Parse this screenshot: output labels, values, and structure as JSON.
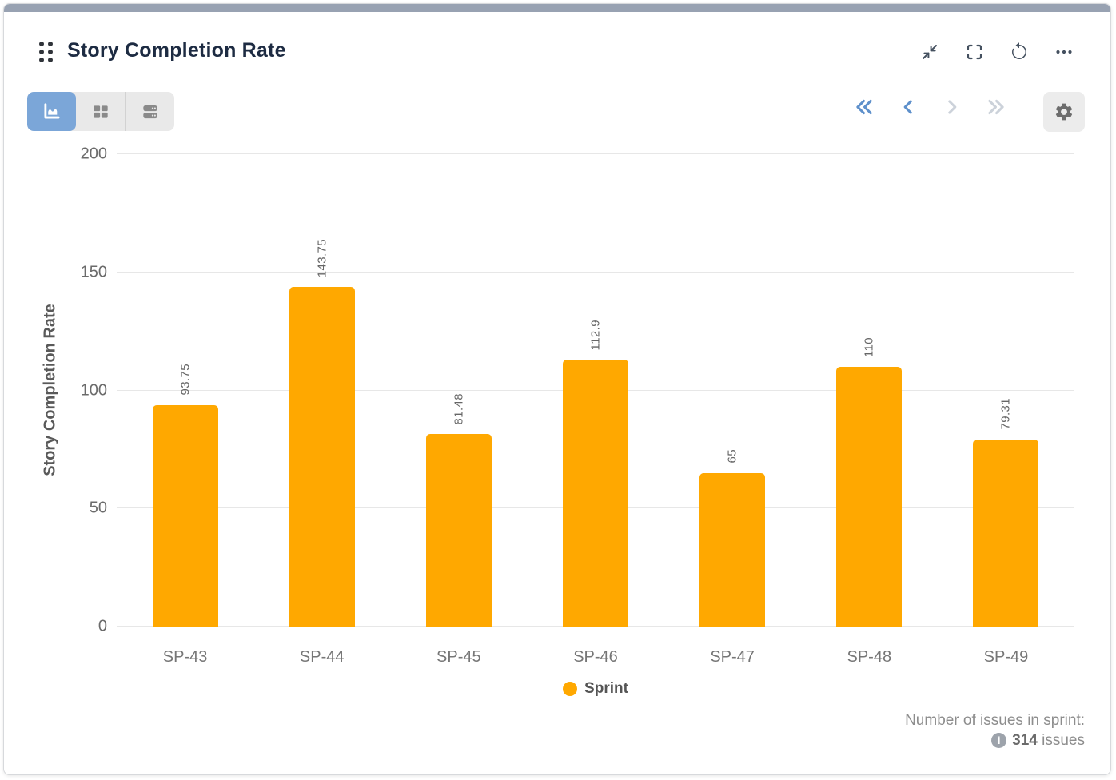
{
  "header": {
    "title": "Story Completion Rate",
    "icons": [
      "drag-handle-icon",
      "collapse-icon",
      "fullscreen-icon",
      "refresh-icon",
      "more-icon"
    ]
  },
  "toolbar": {
    "views": [
      {
        "name": "chart-view",
        "icon": "area-chart-icon",
        "active": true
      },
      {
        "name": "table-view",
        "icon": "table-icon",
        "active": false
      },
      {
        "name": "list-view",
        "icon": "rows-icon",
        "active": false
      }
    ],
    "pagination": [
      {
        "name": "first-page",
        "icon": "double-chevron-left-icon",
        "enabled": true
      },
      {
        "name": "prev-page",
        "icon": "chevron-left-icon",
        "enabled": true
      },
      {
        "name": "next-page",
        "icon": "chevron-right-icon",
        "enabled": false
      },
      {
        "name": "last-page",
        "icon": "double-chevron-right-icon",
        "enabled": false
      }
    ],
    "settings_icon": "gear-icon"
  },
  "chart_data": {
    "type": "bar",
    "categories": [
      "SP-43",
      "SP-44",
      "SP-45",
      "SP-46",
      "SP-47",
      "SP-48",
      "SP-49"
    ],
    "values": [
      93.75,
      143.75,
      81.48,
      112.9,
      65,
      110,
      79.31
    ],
    "value_labels": [
      "93.75",
      "143.75",
      "81.48",
      "112.9",
      "65",
      "110",
      "79.31"
    ],
    "title": "",
    "xlabel": "",
    "ylabel": "Story Completion Rate",
    "ylim": [
      0,
      200
    ],
    "yticks": [
      0,
      50,
      100,
      150,
      200
    ],
    "grid": true,
    "bar_color": "#FFA800",
    "legend": [
      {
        "label": "Sprint",
        "color": "#FFA800"
      }
    ],
    "legend_position": "bottom-center"
  },
  "footer": {
    "label": "Number of issues in sprint:",
    "info_icon": "info-icon",
    "count": "314",
    "suffix": "issues"
  },
  "colors": {
    "accent_bar": "#98A2B2",
    "active_view_bg": "#7BA6D8",
    "bar": "#FFA800",
    "nav_enabled": "#5E90CB",
    "nav_disabled": "#CCD2DA",
    "gridline": "#E7E7E7"
  }
}
